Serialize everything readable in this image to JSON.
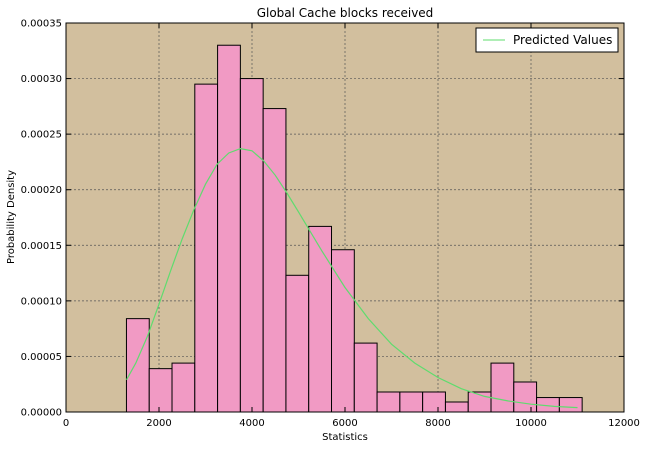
{
  "chart_data": {
    "type": "bar",
    "title": "Global Cache blocks received",
    "xlabel": "Statistics",
    "ylabel": "Probability Density",
    "xlim": [
      0,
      12000
    ],
    "ylim": [
      0,
      0.00035
    ],
    "xticks": [
      "0",
      "2000",
      "4000",
      "6000",
      "8000",
      "10000",
      "12000"
    ],
    "xtick_values": [
      0,
      2000,
      4000,
      6000,
      8000,
      10000,
      12000
    ],
    "yticks": [
      "0.00000",
      "0.00005",
      "0.00010",
      "0.00015",
      "0.00020",
      "0.00025",
      "0.00030",
      "0.00035"
    ],
    "ytick_values": [
      0,
      5e-05,
      0.0001,
      0.00015,
      0.0002,
      0.00025,
      0.0003,
      0.00035
    ],
    "grid": true,
    "legend_position": "top-right",
    "histogram": {
      "bin_edges": [
        1300,
        1790,
        2280,
        2770,
        3260,
        3750,
        4240,
        4730,
        5220,
        5710,
        6200,
        6690,
        7180,
        7670,
        8160,
        8650,
        9140,
        9630,
        10120,
        10610,
        11100
      ],
      "density": [
        8.4e-05,
        3.9e-05,
        4.4e-05,
        0.000295,
        0.00033,
        0.0003,
        0.000273,
        0.000123,
        0.000167,
        0.000146,
        6.2e-05,
        1.8e-05,
        1.8e-05,
        1.8e-05,
        9e-06,
        1.8e-05,
        4.4e-05,
        2.7e-05,
        1.3e-05,
        1.3e-05
      ]
    },
    "series": [
      {
        "name": "Predicted Values",
        "type": "line",
        "x": [
          1300,
          1500,
          1750,
          2000,
          2250,
          2500,
          2750,
          3000,
          3250,
          3500,
          3750,
          4000,
          4250,
          4500,
          4750,
          5000,
          5500,
          6000,
          6500,
          7000,
          7500,
          8000,
          8500,
          9000,
          9500,
          10000,
          10500,
          11000
        ],
        "y": [
          2.9e-05,
          4.4e-05,
          6.8e-05,
          9.7e-05,
          0.000127,
          0.000156,
          0.000182,
          0.000205,
          0.000223,
          0.000233,
          0.000237,
          0.000235,
          0.000226,
          0.000213,
          0.000197,
          0.00018,
          0.000145,
          0.000112,
          8.4e-05,
          6.1e-05,
          4.4e-05,
          3.1e-05,
          2.1e-05,
          1.4e-05,
          1e-05,
          7e-06,
          5e-06,
          4e-06
        ]
      }
    ]
  },
  "colors": {
    "plot_background": "#d2bf9e",
    "bar_fill": "#f19ac4",
    "bar_edge": "#000000",
    "line": "#5fdc6e",
    "grid": "#555555"
  }
}
